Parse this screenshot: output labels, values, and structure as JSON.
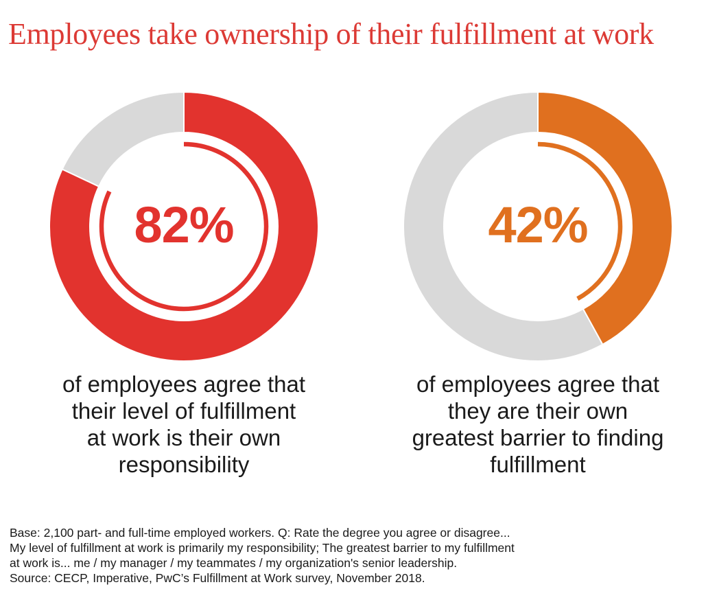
{
  "title": "Employees take ownership of their fulfillment at work",
  "colors": {
    "title": "#dc3a35",
    "remainder": "#d9d9d9",
    "text": "#1a1a1a"
  },
  "chart_data": [
    {
      "type": "pie",
      "value": 82,
      "value_label": "82%",
      "color": "#e2332e",
      "remainder_color": "#d9d9d9",
      "caption": [
        "of employees agree that",
        "their level of fulfillment",
        "at work is their own",
        "responsibility"
      ]
    },
    {
      "type": "pie",
      "value": 42,
      "value_label": "42%",
      "color": "#e0701f",
      "remainder_color": "#d9d9d9",
      "caption": [
        "of employees agree that",
        "they are their own",
        "greatest barrier to finding",
        "fulfillment"
      ]
    }
  ],
  "footnote": [
    "Base: 2,100 part- and full-time employed workers. Q: Rate the degree you agree or disagree...",
    "My level of fulfillment at work is primarily my responsibility; The greatest barrier to my fulfillment",
    "at work is... me / my manager / my teammates / my organization's senior leadership.",
    "Source: CECP, Imperative, PwC’s Fulfillment at Work survey, November 2018."
  ]
}
